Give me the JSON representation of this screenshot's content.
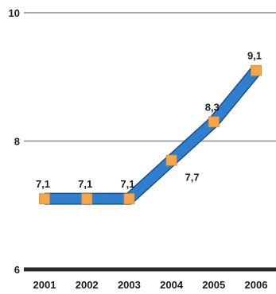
{
  "chart_data": {
    "type": "line",
    "x": [
      "2001",
      "2002",
      "2003",
      "2004",
      "2005",
      "2006"
    ],
    "series": [
      {
        "values": [
          7.1,
          7.1,
          7.1,
          7.7,
          8.3,
          9.1
        ],
        "labels": [
          "7,1",
          "7,1",
          "7,1",
          "7,7",
          "8,3",
          "9,1"
        ]
      }
    ],
    "y_ticks": [
      {
        "value": 10,
        "label": "10"
      },
      {
        "value": 8,
        "label": "8"
      },
      {
        "value": 6,
        "label": "6"
      }
    ],
    "ylim": [
      6,
      10
    ],
    "grid": true,
    "colors": {
      "line": "#2f7fd1",
      "marker": "#f5a54a",
      "grid": "#8a8a8a",
      "baseline": "#2a2a2a",
      "text": "#1c1c1c"
    }
  }
}
